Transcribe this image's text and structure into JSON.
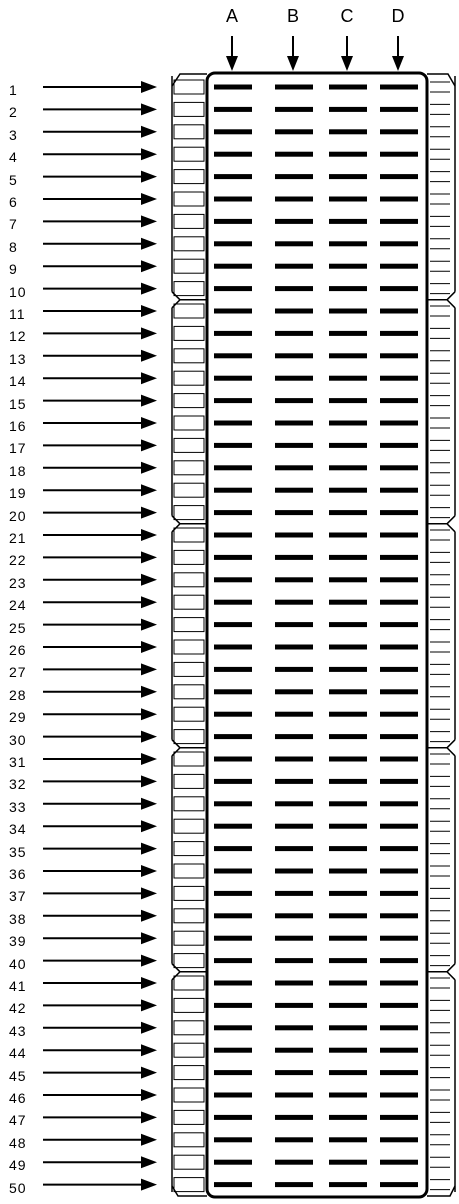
{
  "columns": [
    "A",
    "B",
    "C",
    "D"
  ],
  "rows": [
    "1",
    "2",
    "3",
    "4",
    "5",
    "6",
    "7",
    "8",
    "9",
    "10",
    "11",
    "12",
    "13",
    "14",
    "15",
    "16",
    "17",
    "18",
    "19",
    "20",
    "21",
    "22",
    "23",
    "24",
    "25",
    "26",
    "27",
    "28",
    "29",
    "30",
    "31",
    "32",
    "33",
    "34",
    "35",
    "36",
    "37",
    "38",
    "39",
    "40",
    "41",
    "42",
    "43",
    "44",
    "45",
    "46",
    "47",
    "48",
    "49",
    "50"
  ],
  "notches_after_rows": [
    10,
    20,
    30,
    40
  ],
  "colors": {
    "line": "#000000",
    "background": "#ffffff"
  }
}
